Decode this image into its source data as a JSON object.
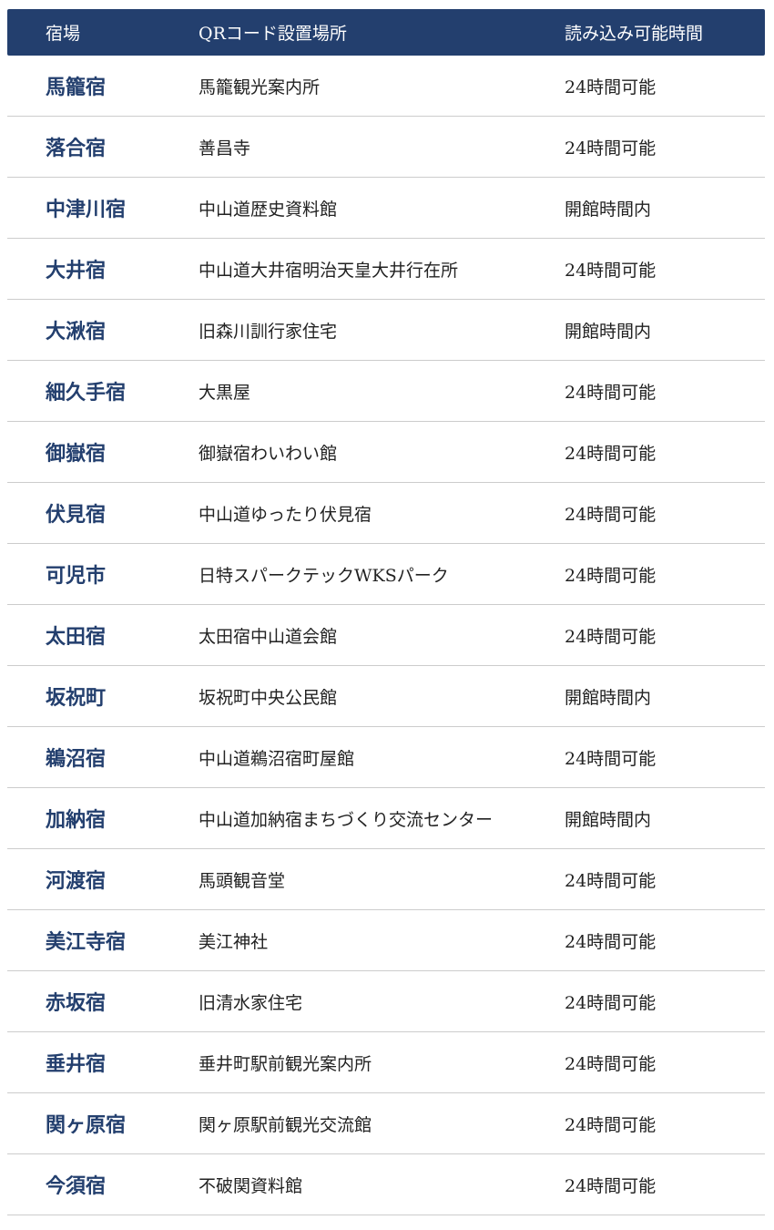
{
  "table": {
    "header": [
      "宿場",
      "QRコード設置場所",
      "読み込み可能時間"
    ],
    "rows": [
      [
        "馬籠宿",
        "馬籠観光案内所",
        "24時間可能"
      ],
      [
        "落合宿",
        "善昌寺",
        "24時間可能"
      ],
      [
        "中津川宿",
        "中山道歴史資料館",
        "開館時間内"
      ],
      [
        "大井宿",
        "中山道大井宿明治天皇大井行在所",
        "24時間可能"
      ],
      [
        "大湫宿",
        "旧森川訓行家住宅",
        "開館時間内"
      ],
      [
        "細久手宿",
        "大黒屋",
        "24時間可能"
      ],
      [
        "御嶽宿",
        "御嶽宿わいわい館",
        "24時間可能"
      ],
      [
        "伏見宿",
        "中山道ゆったり伏見宿",
        "24時間可能"
      ],
      [
        "可児市",
        "日特スパークテックWKSパーク",
        "24時間可能"
      ],
      [
        "太田宿",
        "太田宿中山道会館",
        "24時間可能"
      ],
      [
        "坂祝町",
        "坂祝町中央公民館",
        "開館時間内"
      ],
      [
        "鵜沼宿",
        "中山道鵜沼宿町屋館",
        "24時間可能"
      ],
      [
        "加納宿",
        "中山道加納宿まちづくり交流センター",
        "開館時間内"
      ],
      [
        "河渡宿",
        "馬頭観音堂",
        "24時間可能"
      ],
      [
        "美江寺宿",
        "美江神社",
        "24時間可能"
      ],
      [
        "赤坂宿",
        "旧清水家住宅",
        "24時間可能"
      ],
      [
        "垂井宿",
        "垂井町駅前観光案内所",
        "24時間可能"
      ],
      [
        "関ヶ原宿",
        "関ヶ原駅前観光交流館",
        "24時間可能"
      ],
      [
        "今須宿",
        "不破関資料館",
        "24時間可能"
      ]
    ]
  }
}
